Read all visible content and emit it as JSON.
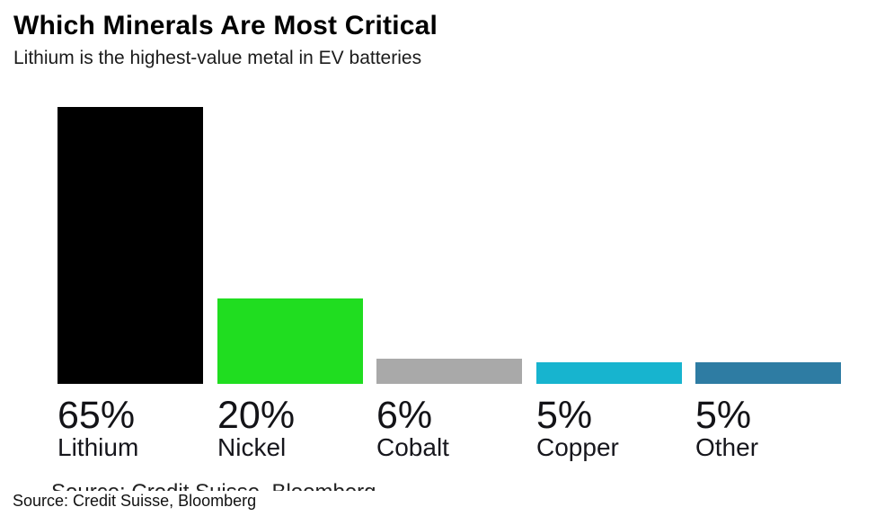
{
  "header": {
    "title": "Which Minerals Are Most Critical",
    "subtitle": "Lithium is the highest-value metal in EV batteries"
  },
  "chart_data": {
    "type": "bar",
    "title": "Which Minerals Are Most Critical",
    "subtitle": "Lithium is the highest-value metal in EV batteries",
    "categories": [
      "Lithium",
      "Nickel",
      "Cobalt",
      "Copper",
      "Other"
    ],
    "values": [
      65,
      20,
      6,
      5,
      5
    ],
    "value_labels": [
      "65%",
      "20%",
      "6%",
      "5%",
      "5%"
    ],
    "bar_colors": [
      "#000000",
      "#20DD20",
      "#A9A9A9",
      "#17B4CF",
      "#2E7CA3"
    ],
    "xlabel": "",
    "ylabel": "",
    "ylim": [
      0,
      65
    ],
    "grid": false,
    "legend": "none",
    "value_suffix": "%",
    "label_position": "below-bars-left-aligned"
  },
  "footer": {
    "clipped_source_text": "Source: Credit Suisse, Bloomberg",
    "source_text": "Source: Credit Suisse, Bloomberg"
  },
  "colors": {
    "background": "#ffffff",
    "title_text": "#000000",
    "label_text": "#131317"
  }
}
